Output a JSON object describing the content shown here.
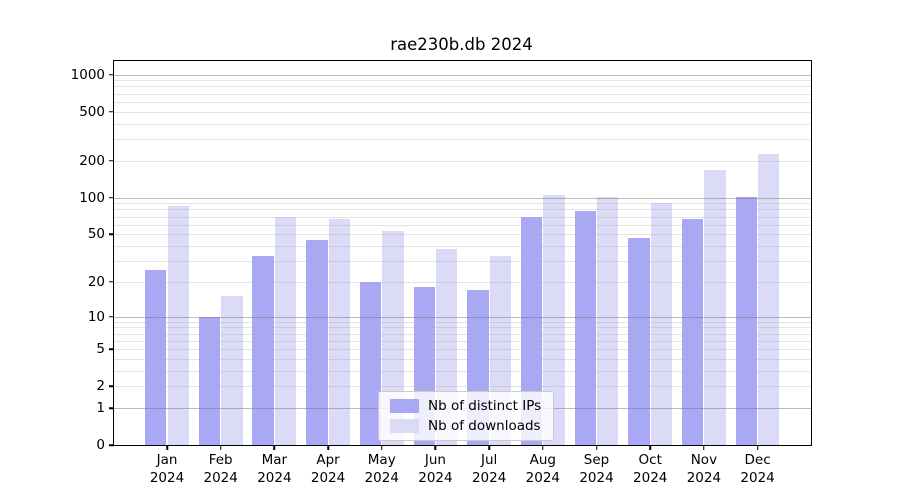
{
  "title": "rae230b.db 2024",
  "colors": {
    "ips_bar": "#a8a8f5",
    "downloads_bar": "#dbdbf8",
    "grid_major": "rgba(120,120,120,0.50)",
    "grid_minor": "rgba(175,175,175,0.35)",
    "axis": "#000000",
    "legend_border": "#cccccc"
  },
  "y_axis": {
    "tick_labels": [
      "1000",
      "500",
      "200",
      "100",
      "50",
      "20",
      "10",
      "5",
      "2",
      "1",
      "0"
    ]
  },
  "x_axis": {
    "months": [
      "Jan",
      "Feb",
      "Mar",
      "Apr",
      "May",
      "Jun",
      "Jul",
      "Aug",
      "Sep",
      "Oct",
      "Nov",
      "Dec"
    ],
    "year": "2024"
  },
  "chart_data": {
    "type": "bar",
    "title": "rae230b.db 2024",
    "categories": [
      "Jan 2024",
      "Feb 2024",
      "Mar 2024",
      "Apr 2024",
      "May 2024",
      "Jun 2024",
      "Jul 2024",
      "Aug 2024",
      "Sep 2024",
      "Oct 2024",
      "Nov 2024",
      "Dec 2024"
    ],
    "series": [
      {
        "name": "Nb of distinct IPs",
        "color": "#a8a8f5",
        "values": [
          25,
          10,
          33,
          45,
          20,
          18,
          17,
          70,
          78,
          47,
          67,
          101
        ]
      },
      {
        "name": "Nb of downloads",
        "color": "#dbdbf8",
        "values": [
          86,
          15,
          70,
          67,
          53,
          38,
          33,
          105,
          101,
          91,
          168,
          225
        ]
      }
    ],
    "yscale": "symlog-like (position proportional to log10(1+value))",
    "yticks": [
      1000,
      500,
      200,
      100,
      50,
      20,
      10,
      5,
      2,
      1,
      0
    ],
    "ylim": [
      0,
      1288
    ],
    "xlabel": "",
    "ylabel": "",
    "grid": true,
    "legend_position": "lower center"
  }
}
